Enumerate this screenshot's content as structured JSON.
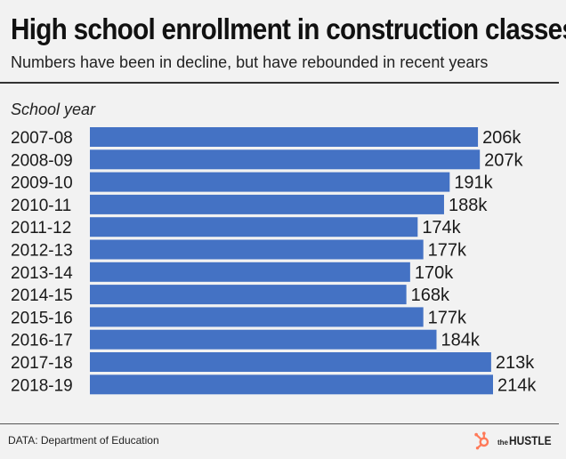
{
  "title": "High school enrollment in construction classes",
  "subtitle": "Numbers have been in decline, but have rebounded in recent years",
  "footer": {
    "source": "DATA: Department of Education",
    "brand_prefix": "the",
    "brand_name": "HUSTLE",
    "brand_icon": "hubspot-sprocket-icon",
    "brand_icon_color": "#ff7a59"
  },
  "chart_data": {
    "type": "bar",
    "orientation": "horizontal",
    "ylabel": "School year",
    "categories": [
      "2007-08",
      "2008-09",
      "2009-10",
      "2010-11",
      "2011-12",
      "2012-13",
      "2013-14",
      "2014-15",
      "2015-16",
      "2016-17",
      "2017-18",
      "2018-19"
    ],
    "values": [
      206,
      207,
      191,
      188,
      174,
      177,
      170,
      168,
      177,
      184,
      213,
      214
    ],
    "value_labels": [
      "206k",
      "207k",
      "191k",
      "188k",
      "174k",
      "177k",
      "170k",
      "168k",
      "177k",
      "184k",
      "213k",
      "214k"
    ],
    "unit": "k",
    "xlim": [
      0,
      214
    ],
    "bar_color": "#4472c4",
    "grid": false,
    "legend": "none"
  }
}
